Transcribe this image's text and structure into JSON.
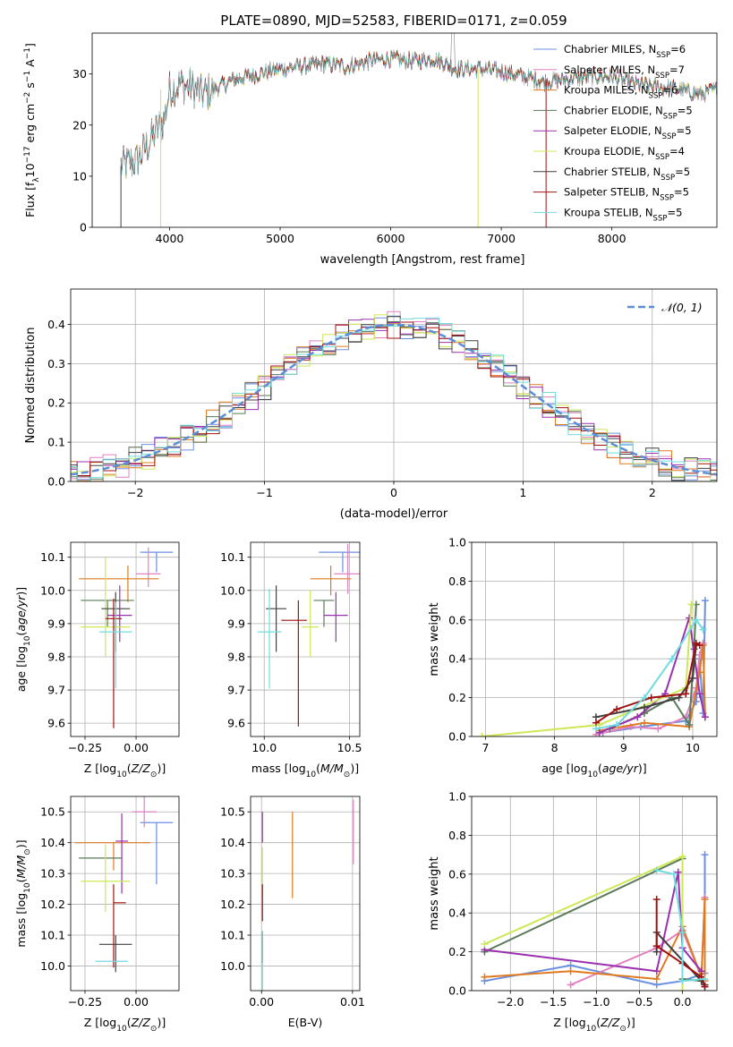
{
  "figure_title": "PLATE=0890, MJD=52583, FIBERID=0171, z=0.059",
  "colors": {
    "Chabrier MILES": "#6b8fe0",
    "Salpeter MILES": "#e080c0",
    "Kroupa MILES": "#e07a20",
    "Chabrier ELODIE": "#5a7a5a",
    "Salpeter ELODIE": "#9a30b0",
    "Kroupa ELODIE": "#cce855",
    "Chabrier STELIB": "#404040",
    "Salpeter STELIB": "#a01010",
    "Kroupa STELIB": "#70dce0",
    "gaussian": "#5b8ed6",
    "data": "#a0a0a0"
  },
  "chart_data": [
    {
      "id": "spectrum",
      "type": "line",
      "xlabel": "wavelength [Angstrom, rest frame]",
      "ylabel": "Flux [f_λ10^-17 erg cm^-2 s^-1 A^-1]",
      "xlim": [
        3300,
        8950
      ],
      "ylim": [
        0,
        38
      ],
      "xticks": [
        4000,
        5000,
        6000,
        7000,
        8000
      ],
      "yticks": [
        0,
        10,
        20,
        30
      ],
      "legend_position": "upper right",
      "legend": [
        {
          "name": "Chabrier MILES",
          "main": "Chabrier MILES, N",
          "sub": "SSP",
          "tail": "=6"
        },
        {
          "name": "Salpeter MILES",
          "main": "Salpeter MILES, N",
          "sub": "SSP",
          "tail": "=7"
        },
        {
          "name": "Kroupa MILES",
          "main": "Kroupa MILES, N",
          "sub": "SSP",
          "tail": "=6"
        },
        {
          "name": "Chabrier ELODIE",
          "main": "Chabrier ELODIE, N",
          "sub": "SSP",
          "tail": "=5"
        },
        {
          "name": "Salpeter ELODIE",
          "main": "Salpeter ELODIE, N",
          "sub": "SSP",
          "tail": "=5"
        },
        {
          "name": "Kroupa ELODIE",
          "main": "Kroupa ELODIE, N",
          "sub": "SSP",
          "tail": "=4"
        },
        {
          "name": "Chabrier STELIB",
          "main": "Chabrier STELIB, N",
          "sub": "SSP",
          "tail": "=5"
        },
        {
          "name": "Salpeter STELIB",
          "main": "Salpeter STELIB, N",
          "sub": "SSP",
          "tail": "=5"
        },
        {
          "name": "Kroupa STELIB",
          "main": "Kroupa STELIB, N",
          "sub": "SSP",
          "tail": "=5"
        }
      ],
      "continuum": {
        "x": [
          3560,
          3700,
          3800,
          3880,
          3950,
          4000,
          4100,
          4200,
          4300,
          4400,
          4500,
          4600,
          4800,
          5000,
          5200,
          5400,
          5600,
          5800,
          6000,
          6200,
          6400,
          6600,
          6800,
          7000,
          7200,
          7400,
          7600,
          7800,
          8000,
          8200,
          8400,
          8600,
          8800,
          8950
        ],
        "y": [
          12,
          13,
          16,
          19,
          21,
          27,
          28,
          27.5,
          26,
          27,
          28,
          29,
          30,
          31,
          31.5,
          32,
          31.5,
          32.5,
          33,
          32.5,
          33,
          31,
          31,
          30.5,
          29.5,
          28.5,
          29,
          29.5,
          29.5,
          28,
          27.5,
          27,
          26,
          27
        ]
      },
      "noise_amplitude": 1.8
    },
    {
      "id": "residuals",
      "type": "histogram",
      "xlabel": "(data-model)/error",
      "ylabel": "Normed distribution",
      "xlim": [
        -2.5,
        2.5
      ],
      "ylim": [
        0,
        0.49
      ],
      "xticks": [
        -2,
        -1,
        0,
        1,
        2
      ],
      "yticks": [
        0,
        0.1,
        0.2,
        0.3,
        0.4
      ],
      "bin_width": 0.1,
      "legend_position": "upper right",
      "gaussian": {
        "label": "𝒩(0, 1)",
        "mean": 0,
        "sigma": 1
      }
    },
    {
      "id": "age_vs_Z",
      "type": "errorbar",
      "xlabel": "Z [log₁₀(Z/Z⊙)]",
      "ylabel": "age [log₁₀(age/yr)]",
      "xlim": [
        -0.32,
        0.21
      ],
      "ylim": [
        9.56,
        10.145
      ],
      "xticks": [
        -0.25,
        0.0
      ],
      "xticklabels": [
        "−0.25",
        "0.00"
      ],
      "yticks": [
        9.6,
        9.7,
        9.8,
        9.9,
        10.0,
        10.1
      ],
      "points": [
        {
          "name": "Chabrier MILES",
          "x": 0.1,
          "xerr": [
            0.08,
            0.08
          ],
          "y": 10.115,
          "yerr": [
            0.06,
            0.0
          ]
        },
        {
          "name": "Salpeter MILES",
          "x": 0.06,
          "xerr": [
            0.06,
            0.06
          ],
          "y": 10.05,
          "yerr": [
            0.04,
            0.08
          ]
        },
        {
          "name": "Kroupa MILES",
          "x": -0.04,
          "xerr": [
            0.24,
            0.15
          ],
          "y": 10.035,
          "yerr": [
            0.07,
            0.04
          ]
        },
        {
          "name": "Chabrier ELODIE",
          "x": -0.14,
          "xerr": [
            0.13,
            0.13
          ],
          "y": 9.97,
          "yerr": [
            0.08,
            0.0
          ]
        },
        {
          "name": "Salpeter ELODIE",
          "x": -0.08,
          "xerr": [
            0.06,
            0.06
          ],
          "y": 9.925,
          "yerr": [
            0.08,
            0.09
          ]
        },
        {
          "name": "Kroupa ELODIE",
          "x": -0.15,
          "xerr": [
            0.12,
            0.12
          ],
          "y": 9.89,
          "yerr": [
            0.09,
            0.21
          ]
        },
        {
          "name": "Chabrier STELIB",
          "x": -0.1,
          "xerr": [
            0.07,
            0.07
          ],
          "y": 9.945,
          "yerr": [
            0.13,
            0.05
          ]
        },
        {
          "name": "Salpeter STELIB",
          "x": -0.11,
          "xerr": [
            0.04,
            0.04
          ],
          "y": 9.915,
          "yerr": [
            0.33,
            0.06
          ]
        },
        {
          "name": "Kroupa STELIB",
          "x": -0.1,
          "xerr": [
            0.08,
            0.08
          ],
          "y": 9.875,
          "yerr": [
            0.17,
            0.09
          ]
        }
      ]
    },
    {
      "id": "age_vs_mass",
      "type": "errorbar",
      "xlabel": "mass [log₁₀(M/M⊙)]",
      "ylabel": "",
      "xlim": [
        9.92,
        10.56
      ],
      "ylim": [
        9.56,
        10.145
      ],
      "xticks": [
        10.0,
        10.5
      ],
      "xticklabels": [
        "10.0",
        "10.5"
      ],
      "yticks": [
        9.6,
        9.7,
        9.8,
        9.9,
        10.0,
        10.1
      ],
      "points": [
        {
          "name": "Chabrier MILES",
          "x": 10.46,
          "xerr": [
            0.14,
            0.14
          ],
          "y": 10.115,
          "yerr": [
            0.06,
            0.0
          ]
        },
        {
          "name": "Salpeter MILES",
          "x": 10.49,
          "xerr": [
            0.08,
            0.08
          ],
          "y": 10.05,
          "yerr": [
            0.06,
            0.09
          ]
        },
        {
          "name": "Kroupa MILES",
          "x": 10.39,
          "xerr": [
            0.12,
            0.12
          ],
          "y": 10.035,
          "yerr": [
            0.05,
            0.04
          ]
        },
        {
          "name": "Chabrier ELODIE",
          "x": 10.35,
          "xerr": [
            0.06,
            0.06
          ],
          "y": 9.97,
          "yerr": [
            0.08,
            0.0
          ]
        },
        {
          "name": "Salpeter ELODIE",
          "x": 10.42,
          "xerr": [
            0.07,
            0.07
          ],
          "y": 9.925,
          "yerr": [
            0.08,
            0.07
          ]
        },
        {
          "name": "Kroupa ELODIE",
          "x": 10.27,
          "xerr": [
            0.05,
            0.05
          ],
          "y": 9.89,
          "yerr": [
            0.09,
            0.11
          ]
        },
        {
          "name": "Chabrier STELIB",
          "x": 10.07,
          "xerr": [
            0.06,
            0.06
          ],
          "y": 9.945,
          "yerr": [
            0.13,
            0.07
          ]
        },
        {
          "name": "Salpeter STELIB",
          "x": 10.2,
          "xerr": [
            0.1,
            0.05
          ],
          "y": 9.91,
          "yerr": [
            0.32,
            0.06
          ]
        },
        {
          "name": "Kroupa STELIB",
          "x": 10.03,
          "xerr": [
            0.07,
            0.07
          ],
          "y": 9.875,
          "yerr": [
            0.17,
            0.13
          ]
        }
      ]
    },
    {
      "id": "weight_vs_age",
      "type": "line",
      "xlabel": "age [log₁₀(age/yr)]",
      "ylabel": "mass weight",
      "xlim": [
        6.8,
        10.35
      ],
      "ylim": [
        0,
        1.0
      ],
      "xticks": [
        7,
        8,
        9,
        10
      ],
      "yticks": [
        0.0,
        0.2,
        0.4,
        0.6,
        0.8,
        1.0
      ],
      "series": [
        {
          "name": "Chabrier MILES",
          "x": [
            8.7,
            9.25,
            9.9,
            10.05,
            10.1,
            10.15,
            10.18
          ],
          "y": [
            0.02,
            0.05,
            0.08,
            0.18,
            0.4,
            0.12,
            0.7
          ]
        },
        {
          "name": "Salpeter MILES",
          "x": [
            8.6,
            9.1,
            9.5,
            9.9,
            10.05,
            10.1,
            10.15
          ],
          "y": [
            0.01,
            0.05,
            0.04,
            0.1,
            0.25,
            0.42,
            0.48
          ]
        },
        {
          "name": "Kroupa MILES",
          "x": [
            8.65,
            9.3,
            9.95,
            10.1,
            10.15,
            10.18
          ],
          "y": [
            0.03,
            0.07,
            0.05,
            0.33,
            0.47,
            0.1
          ]
        },
        {
          "name": "Chabrier ELODIE",
          "x": [
            8.8,
            9.3,
            9.7,
            9.95,
            10.02,
            10.05
          ],
          "y": [
            0.04,
            0.12,
            0.2,
            0.06,
            0.45,
            0.68
          ]
        },
        {
          "name": "Salpeter ELODIE",
          "x": [
            8.65,
            9.2,
            9.6,
            9.95,
            10.1,
            10.18
          ],
          "y": [
            0.02,
            0.1,
            0.22,
            0.61,
            0.22,
            0.1
          ]
        },
        {
          "name": "Kroupa ELODIE",
          "x": [
            6.95,
            8.65,
            9.9,
            9.98
          ],
          "y": [
            0.0,
            0.06,
            0.25,
            0.68
          ]
        },
        {
          "name": "Chabrier STELIB",
          "x": [
            8.6,
            9.3,
            9.8,
            10.0,
            10.05
          ],
          "y": [
            0.1,
            0.15,
            0.2,
            0.3,
            0.47
          ]
        },
        {
          "name": "Salpeter STELIB",
          "x": [
            8.6,
            8.9,
            9.4,
            9.9,
            10.05,
            10.1
          ],
          "y": [
            0.07,
            0.14,
            0.2,
            0.22,
            0.48,
            0.47
          ]
        },
        {
          "name": "Kroupa STELIB",
          "x": [
            8.6,
            8.9,
            9.3,
            9.7,
            10.05,
            10.15
          ],
          "y": [
            0.04,
            0.06,
            0.2,
            0.4,
            0.6,
            0.55
          ]
        }
      ]
    },
    {
      "id": "mass_vs_Z",
      "type": "errorbar",
      "xlabel": "Z [log₁₀(Z/Z⊙)]",
      "ylabel": "mass [log₁₀(M/M⊙)]",
      "xlim": [
        -0.32,
        0.21
      ],
      "ylim": [
        9.92,
        10.55
      ],
      "xticks": [
        -0.25,
        0.0
      ],
      "xticklabels": [
        "−0.25",
        "0.00"
      ],
      "yticks": [
        10.0,
        10.1,
        10.2,
        10.3,
        10.4,
        10.5
      ],
      "points": [
        {
          "name": "Chabrier MILES",
          "x": 0.1,
          "xerr": [
            0.08,
            0.08
          ],
          "y": 10.465,
          "yerr": [
            0.2,
            0.0
          ]
        },
        {
          "name": "Salpeter MILES",
          "x": 0.04,
          "xerr": [
            0.06,
            0.06
          ],
          "y": 10.5,
          "yerr": [
            0.05,
            0.06
          ]
        },
        {
          "name": "Kroupa MILES",
          "x": -0.11,
          "xerr": [
            0.19,
            0.18
          ],
          "y": 10.4,
          "yerr": [
            0.09,
            0.0
          ]
        },
        {
          "name": "Chabrier ELODIE",
          "x": -0.17,
          "xerr": [
            0.11,
            0.1
          ],
          "y": 10.35,
          "yerr": [
            0.0,
            0.0
          ]
        },
        {
          "name": "Salpeter ELODIE",
          "x": -0.07,
          "xerr": [
            0.03,
            0.03
          ],
          "y": 10.405,
          "yerr": [
            0.17,
            0.09
          ]
        },
        {
          "name": "Kroupa ELODIE",
          "x": -0.15,
          "xerr": [
            0.12,
            0.12
          ],
          "y": 10.275,
          "yerr": [
            0.1,
            0.12
          ]
        },
        {
          "name": "Chabrier STELIB",
          "x": -0.1,
          "xerr": [
            0.08,
            0.08
          ],
          "y": 10.07,
          "yerr": [
            0.09,
            0.03
          ]
        },
        {
          "name": "Salpeter STELIB",
          "x": -0.11,
          "xerr": [
            0.0,
            0.06
          ],
          "y": 10.205,
          "yerr": [
            0.21,
            0.06
          ]
        },
        {
          "name": "Kroupa STELIB",
          "x": -0.12,
          "xerr": [
            0.08,
            0.08
          ],
          "y": 10.015,
          "yerr": [
            0.0,
            0.0
          ]
        }
      ]
    },
    {
      "id": "mass_vs_ebv",
      "type": "errorbar",
      "xlabel": "E(B-V)",
      "ylabel": "",
      "xlim": [
        -0.0012,
        0.0108
      ],
      "ylim": [
        9.92,
        10.55
      ],
      "xticks": [
        0.0,
        0.01
      ],
      "xticklabels": [
        "0.00",
        "0.01"
      ],
      "yticks": [
        10.0,
        10.1,
        10.2,
        10.3,
        10.4,
        10.5
      ],
      "points": [
        {
          "name": "Salpeter MILES",
          "x": 0.0101,
          "y": 10.5,
          "yerr": [
            0.17,
            0.04
          ]
        },
        {
          "name": "Kroupa MILES",
          "x": 0.0034,
          "y": 10.4,
          "yerr": [
            0.18,
            0.1
          ]
        },
        {
          "name": "Salpeter ELODIE",
          "x": 0.0001,
          "y": 10.4,
          "yerr": [
            0.0,
            0.1
          ]
        },
        {
          "name": "Kroupa ELODIE",
          "x": 0.0001,
          "y": 10.275,
          "yerr": [
            0.05,
            0.11
          ]
        },
        {
          "name": "Salpeter STELIB",
          "x": 0.0001,
          "y": 10.205,
          "yerr": [
            0.06,
            0.06
          ]
        },
        {
          "name": "Chabrier STELIB",
          "x": 0.0001,
          "y": 10.07,
          "yerr": [
            0.06,
            0.04
          ]
        },
        {
          "name": "Kroupa STELIB",
          "x": 0.0001,
          "y": 10.015,
          "yerr": [
            0.1,
            0.1
          ]
        }
      ]
    },
    {
      "id": "weight_vs_Z",
      "type": "line",
      "xlabel": "Z [log₁₀(Z/Z⊙)]",
      "ylabel": "mass weight",
      "xlim": [
        -2.45,
        0.4
      ],
      "ylim": [
        0,
        1.0
      ],
      "xticks": [
        -2.0,
        -1.5,
        -1.0,
        -0.5,
        0.0
      ],
      "xticklabels": [
        "−2.0",
        "−1.5",
        "−1.0",
        "−0.5",
        "0.0"
      ],
      "yticks": [
        0.0,
        0.2,
        0.4,
        0.6,
        0.8,
        1.0
      ],
      "series": [
        {
          "name": "Chabrier MILES",
          "x": [
            -2.3,
            -1.3,
            -0.3,
            0.0,
            0.26,
            0.26,
            0.26
          ],
          "y": [
            0.05,
            0.13,
            0.03,
            0.05,
            0.09,
            0.7,
            0.02
          ]
        },
        {
          "name": "Salpeter MILES",
          "x": [
            -1.3,
            -0.3,
            0.0,
            0.22,
            0.26
          ],
          "y": [
            0.03,
            0.22,
            0.31,
            0.07,
            0.48
          ]
        },
        {
          "name": "Kroupa MILES",
          "x": [
            -2.3,
            -1.3,
            -0.3,
            0.0,
            0.22,
            0.26,
            0.26
          ],
          "y": [
            0.07,
            0.1,
            0.06,
            0.33,
            0.07,
            0.47,
            0.05
          ]
        },
        {
          "name": "Chabrier ELODIE",
          "x": [
            -2.3,
            0.0,
            0.0,
            0.22
          ],
          "y": [
            0.2,
            0.68,
            0.06,
            0.05
          ]
        },
        {
          "name": "Salpeter ELODIE",
          "x": [
            -2.3,
            -0.3,
            -0.05,
            0.0,
            0.22
          ],
          "y": [
            0.21,
            0.1,
            0.61,
            0.22,
            0.1
          ]
        },
        {
          "name": "Kroupa ELODIE",
          "x": [
            -2.3,
            0.0,
            0.0
          ],
          "y": [
            0.24,
            0.69,
            0.0
          ]
        },
        {
          "name": "Chabrier STELIB",
          "x": [
            -0.3,
            -0.3,
            0.22,
            0.26
          ],
          "y": [
            0.2,
            0.3,
            0.05,
            0.03
          ]
        },
        {
          "name": "Salpeter STELIB",
          "x": [
            -0.3,
            -0.3,
            0.0,
            0.22,
            0.26
          ],
          "y": [
            0.47,
            0.23,
            0.14,
            0.07,
            0.02
          ]
        },
        {
          "name": "Kroupa STELIB",
          "x": [
            -0.3,
            -0.1,
            0.0,
            0.0,
            0.26
          ],
          "y": [
            0.62,
            0.6,
            0.3,
            0.05,
            0.06
          ]
        }
      ]
    }
  ]
}
